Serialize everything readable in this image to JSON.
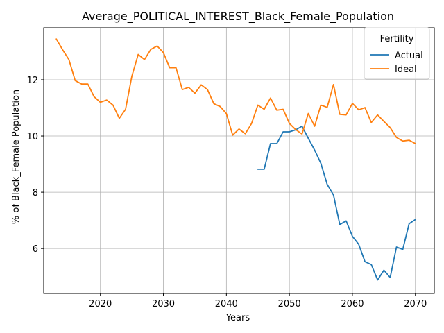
{
  "chart_data": {
    "type": "line",
    "title": "Average_POLITICAL_INTEREST_Black_Female_Population",
    "xlabel": "Years",
    "ylabel": "% of Black_Female Population",
    "xlim": [
      2011,
      2073
    ],
    "ylim": [
      4.4,
      13.85
    ],
    "xticks": [
      2020,
      2030,
      2040,
      2050,
      2060,
      2070
    ],
    "yticks": [
      6,
      8,
      10,
      12
    ],
    "grid": true,
    "legend": {
      "title": "Fertility",
      "placement": "top-right"
    },
    "series": [
      {
        "name": "Actual",
        "color": "#1f77b4",
        "x": [
          2045,
          2046,
          2047,
          2048,
          2049,
          2050,
          2051,
          2052,
          2053,
          2054,
          2055,
          2056,
          2057,
          2058,
          2059,
          2060,
          2061,
          2062,
          2063,
          2064,
          2065,
          2066,
          2067,
          2068,
          2069,
          2070
        ],
        "y": [
          8.82,
          8.82,
          9.73,
          9.73,
          10.15,
          10.15,
          10.22,
          10.35,
          9.92,
          9.5,
          9.03,
          8.28,
          7.9,
          6.85,
          6.98,
          6.43,
          6.15,
          5.53,
          5.43,
          4.88,
          5.23,
          4.97,
          6.05,
          5.97,
          6.88,
          7.03
        ]
      },
      {
        "name": "Ideal",
        "color": "#ff7f0e",
        "x": [
          2013,
          2014,
          2015,
          2016,
          2017,
          2018,
          2019,
          2020,
          2021,
          2022,
          2023,
          2024,
          2025,
          2026,
          2027,
          2028,
          2029,
          2030,
          2031,
          2032,
          2033,
          2034,
          2035,
          2036,
          2037,
          2038,
          2039,
          2040,
          2041,
          2042,
          2043,
          2044,
          2045,
          2046,
          2047,
          2048,
          2049,
          2050,
          2051,
          2052,
          2053,
          2054,
          2055,
          2056,
          2057,
          2058,
          2059,
          2060,
          2061,
          2062,
          2063,
          2064,
          2065,
          2066,
          2067,
          2068,
          2069,
          2070
        ],
        "y": [
          13.45,
          13.07,
          12.72,
          11.97,
          11.85,
          11.85,
          11.4,
          11.2,
          11.28,
          11.1,
          10.63,
          10.95,
          12.13,
          12.9,
          12.72,
          13.08,
          13.2,
          12.97,
          12.43,
          12.43,
          11.65,
          11.73,
          11.52,
          11.82,
          11.65,
          11.15,
          11.05,
          10.8,
          10.03,
          10.25,
          10.08,
          10.45,
          11.1,
          10.95,
          11.35,
          10.92,
          10.95,
          10.45,
          10.23,
          10.07,
          10.8,
          10.35,
          11.1,
          11.02,
          11.83,
          10.77,
          10.75,
          11.16,
          10.93,
          11.01,
          10.48,
          10.75,
          10.52,
          10.3,
          9.95,
          9.82,
          9.85,
          9.73
        ]
      }
    ]
  }
}
